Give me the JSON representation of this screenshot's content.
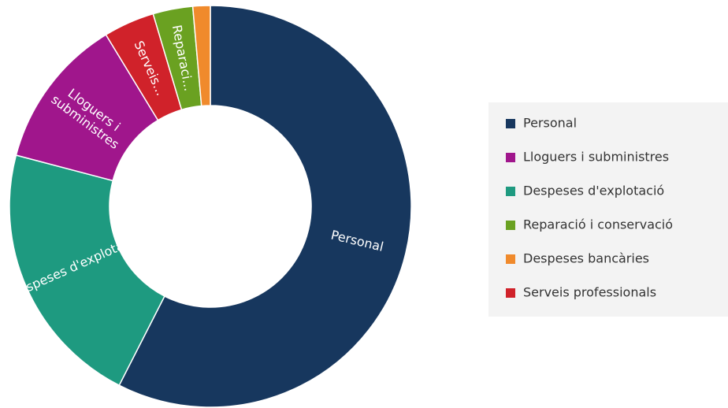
{
  "chart_data": {
    "type": "donut",
    "slices": [
      {
        "label": "Personal",
        "color": "#17375e",
        "value": 57.5
      },
      {
        "label": "Despeses d'explota...",
        "color": "#1e9a80",
        "value": 21.6
      },
      {
        "label": [
          "Lloguers i",
          "subministres"
        ],
        "color": "#a0168c",
        "value": 12.2
      },
      {
        "label": "Serveis...",
        "color": "#d0222a",
        "value": 4.1
      },
      {
        "label": "Reparaci...",
        "color": "#6aa121",
        "value": 3.2
      },
      {
        "label": null,
        "color": "#f08a2c",
        "value": 1.4
      }
    ],
    "legend": [
      {
        "name": "Personal",
        "color": "#17375e"
      },
      {
        "name": "Lloguers i subministres",
        "color": "#a0168c"
      },
      {
        "name": "Despeses d'explotació",
        "color": "#1e9a80"
      },
      {
        "name": "Reparació i conservació",
        "color": "#6aa121"
      },
      {
        "name": "Despeses bancàries",
        "color": "#f08a2c"
      },
      {
        "name": "Serveis professionals",
        "color": "#d0222a"
      }
    ]
  }
}
